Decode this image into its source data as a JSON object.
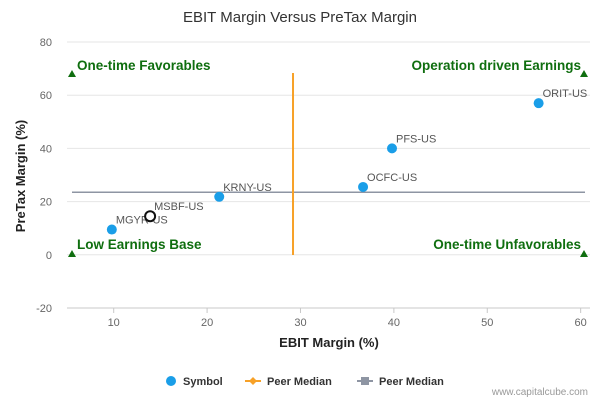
{
  "chart_data": {
    "type": "scatter",
    "title": "EBIT Margin Versus PreTax Margin",
    "xlabel": "EBIT Margin (%)",
    "ylabel": "PreTax Margin (%)",
    "xlim": [
      5,
      61
    ],
    "ylim": [
      -20,
      80
    ],
    "xticks": [
      10,
      20,
      30,
      40,
      50,
      60
    ],
    "yticks": [
      -20,
      0,
      20,
      40,
      60,
      80
    ],
    "points": [
      {
        "label": "MGYR-US",
        "x": 9.8,
        "y": 9.5,
        "highlight": false
      },
      {
        "label": "MSBF-US",
        "x": 13.9,
        "y": 14.5,
        "highlight": true
      },
      {
        "label": "KRNY-US",
        "x": 21.3,
        "y": 21.8,
        "highlight": false
      },
      {
        "label": "OCFC-US",
        "x": 36.7,
        "y": 25.5,
        "highlight": false
      },
      {
        "label": "PFS-US",
        "x": 39.8,
        "y": 40.0,
        "highlight": false
      },
      {
        "label": "ORIT-US",
        "x": 55.5,
        "y": 57.0,
        "highlight": false
      }
    ],
    "peer_median_x": 29.2,
    "peer_median_y": 23.5,
    "quadrant_labels": {
      "top_left": "One-time Favorables",
      "top_right": "Operation driven Earnings",
      "bottom_left": "Low Earnings Base",
      "bottom_right": "One-time Unfavorables"
    },
    "legend": [
      "Symbol",
      "Peer Median",
      "Peer Median"
    ],
    "colors": {
      "point": "#1a9ee8",
      "median_x_line": "#f7a128",
      "median_y_line": "#8e95a3",
      "quadrant": "#0f6e0f",
      "grid": "#e6e6e6"
    }
  },
  "watermark": "www.capitalcube.com"
}
